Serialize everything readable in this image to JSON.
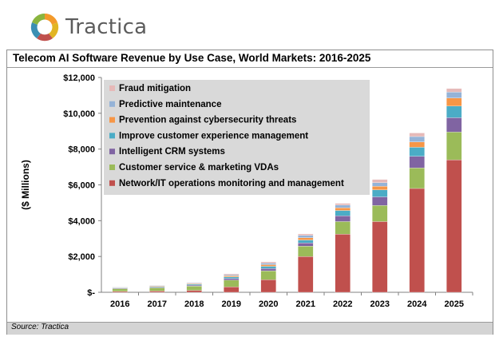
{
  "brand": {
    "name": "Tractica",
    "logo_icon": "tractica-logo-icon"
  },
  "chart_data": {
    "type": "bar",
    "stacked": true,
    "title": "Telecom AI Software Revenue by Use Case, World Markets: 2016-2025",
    "xlabel": "",
    "ylabel": "($ Millions)",
    "ylim": [
      0,
      12000
    ],
    "yticks": [
      "$-",
      "$2,000",
      "$4,000",
      "$6,000",
      "$8,000",
      "$10,000",
      "$12,000"
    ],
    "grid": false,
    "legend_position": "top-left",
    "categories": [
      "2016",
      "2017",
      "2018",
      "2019",
      "2020",
      "2021",
      "2022",
      "2023",
      "2024",
      "2025"
    ],
    "series": [
      {
        "name": "Network/IT operations monitoring and management",
        "color": "#c0504d",
        "values": [
          50,
          70,
          110,
          300,
          700,
          2000,
          3250,
          3950,
          5800,
          7400
        ]
      },
      {
        "name": "Customer service & marketing VDAs",
        "color": "#9bbb59",
        "values": [
          150,
          180,
          240,
          380,
          500,
          580,
          700,
          900,
          1150,
          1550
        ]
      },
      {
        "name": "Intelligent CRM systems",
        "color": "#8064a2",
        "values": [
          30,
          40,
          50,
          90,
          130,
          180,
          320,
          480,
          650,
          800
        ]
      },
      {
        "name": "Improve customer experience management",
        "color": "#4bacc6",
        "values": [
          30,
          40,
          50,
          90,
          120,
          160,
          300,
          390,
          500,
          650
        ]
      },
      {
        "name": "Prevention against cybersecurity threats",
        "color": "#f79646",
        "values": [
          20,
          30,
          40,
          60,
          90,
          130,
          150,
          200,
          300,
          450
        ]
      },
      {
        "name": "Predictive maintenance",
        "color": "#95b3d7",
        "values": [
          20,
          25,
          35,
          60,
          90,
          130,
          150,
          200,
          300,
          330
        ]
      },
      {
        "name": "Fraud mitigation",
        "color": "#e6b9b8",
        "values": [
          10,
          15,
          25,
          50,
          70,
          80,
          100,
          180,
          200,
          200
        ]
      }
    ],
    "legend_order": [
      "Fraud mitigation",
      "Predictive maintenance",
      "Prevention against cybersecurity threats",
      "Improve customer experience management",
      "Intelligent CRM systems",
      "Customer service & marketing VDAs",
      "Network/IT operations monitoring and management"
    ],
    "source": "Source: Tractica"
  }
}
